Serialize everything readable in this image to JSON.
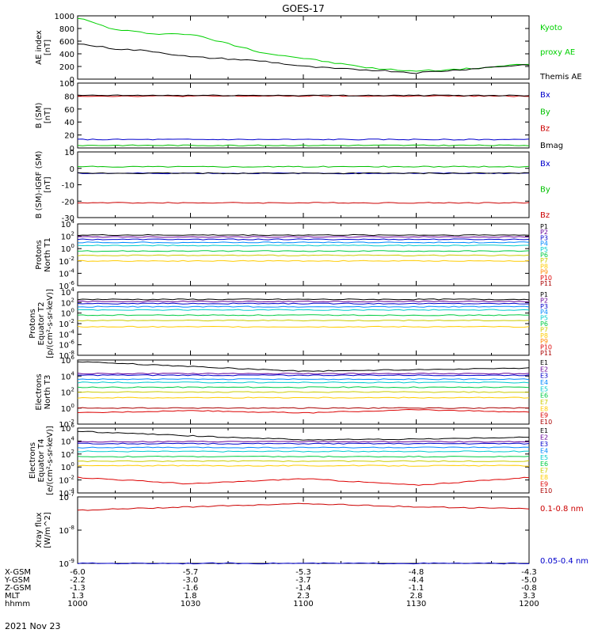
{
  "figure_title": "GOES-17",
  "date_label": "2021 Nov 23",
  "ephemeris": {
    "rows": [
      {
        "label": "X-GSM",
        "values": [
          "-6.0",
          "-5.7",
          "-5.3",
          "-4.8",
          "-4.3"
        ]
      },
      {
        "label": "Y-GSM",
        "values": [
          "-2.2",
          "-3.0",
          "-3.7",
          "-4.4",
          "-5.0"
        ]
      },
      {
        "label": "Z-GSM",
        "values": [
          "-1.3",
          "-1.6",
          "-1.4",
          "-1.1",
          "-0.8"
        ]
      },
      {
        "label": "MLT",
        "values": [
          "1.3",
          "1.8",
          "2.3",
          "2.8",
          "3.3"
        ]
      },
      {
        "label": "hhmm",
        "values": [
          "1000",
          "1030",
          "1100",
          "1130",
          "1200"
        ]
      }
    ]
  },
  "chart_data": [
    {
      "type": "line",
      "panel": "ae",
      "ylabel": [
        "AE index",
        "[nT]"
      ],
      "ylim": [
        0,
        1000
      ],
      "yscale": "linear",
      "yticks": [
        0,
        200,
        400,
        600,
        800,
        1000
      ],
      "x_time": [
        "1000",
        "1010",
        "1020",
        "1030",
        "1040",
        "1050",
        "1100",
        "1110",
        "1120",
        "1130",
        "1140",
        "1150",
        "1200"
      ],
      "series": [
        {
          "name": "Kyoto proxy AE",
          "color": "#00d000",
          "values": [
            970,
            780,
            720,
            710,
            560,
            410,
            330,
            240,
            160,
            130,
            150,
            190,
            240
          ]
        },
        {
          "name": "Themis AE",
          "color": "#000000",
          "values": [
            560,
            480,
            440,
            350,
            320,
            280,
            200,
            160,
            140,
            100,
            140,
            190,
            230
          ]
        }
      ],
      "legend": [
        {
          "text": "Kyoto",
          "color": "#00d000"
        },
        {
          "text": "proxy AE",
          "color": "#00d000"
        },
        {
          "text": "Themis AE",
          "color": "#000000"
        }
      ]
    },
    {
      "type": "line",
      "panel": "b_sm",
      "ylabel": [
        "B (SM)",
        "[nT]"
      ],
      "ylim": [
        0,
        100
      ],
      "yscale": "linear",
      "yticks": [
        0,
        20,
        40,
        60,
        80,
        100
      ],
      "series": [
        {
          "name": "Bx",
          "color": "#0000cc",
          "level": 13
        },
        {
          "name": "By",
          "color": "#00c000",
          "level": 4
        },
        {
          "name": "Bz",
          "color": "#cc0000",
          "level": 80
        },
        {
          "name": "Bmag",
          "color": "#000000",
          "level": 81
        }
      ],
      "legend": [
        {
          "text": "Bx",
          "color": "#0000cc"
        },
        {
          "text": "By",
          "color": "#00c000"
        },
        {
          "text": "Bz",
          "color": "#cc0000"
        },
        {
          "text": "Bmag",
          "color": "#000000"
        }
      ]
    },
    {
      "type": "line",
      "panel": "b_igrf",
      "ylabel": [
        "B (SM)-IGRF (SM)",
        "[nT]"
      ],
      "ylim": [
        -30,
        10
      ],
      "yscale": "linear",
      "yticks": [
        -30,
        -20,
        -10,
        0,
        10
      ],
      "series": [
        {
          "name": "Bx",
          "color": "#0000cc",
          "level": -3
        },
        {
          "name": "By",
          "color": "#00c000",
          "level": 1
        },
        {
          "name": "Bz",
          "color": "#cc0000",
          "level": -21
        },
        {
          "name": "",
          "color": "#000000",
          "level": -3
        }
      ],
      "legend": [
        {
          "text": "Bx",
          "color": "#0000cc"
        },
        {
          "text": "By",
          "color": "#00c000"
        },
        {
          "text": "Bz",
          "color": "#cc0000"
        }
      ]
    },
    {
      "type": "line",
      "panel": "protons_t1",
      "ylabel": [
        "Protons",
        "North T1"
      ],
      "ylim": [
        -6,
        4
      ],
      "yscale": "log",
      "yticks": [
        -6,
        -4,
        -2,
        0,
        2,
        4
      ],
      "series": [
        {
          "name": "P1",
          "color": "#000000",
          "level": 2.2
        },
        {
          "name": "P2",
          "color": "#660099",
          "level": 1.9
        },
        {
          "name": "P3",
          "color": "#0000cc",
          "level": 1.5
        },
        {
          "name": "P4",
          "color": "#0088ff",
          "level": 1.0
        },
        {
          "name": "P5",
          "color": "#00cccc",
          "level": 0.5
        },
        {
          "name": "P6",
          "color": "#00cc44",
          "level": -0.4
        },
        {
          "name": "P7",
          "color": "#cccc00",
          "level": -1.1
        },
        {
          "name": "P8",
          "color": "#ffcc00",
          "level": -2.0
        }
      ],
      "legend": [
        {
          "text": "P1",
          "color": "#000000"
        },
        {
          "text": "P2",
          "color": "#660099"
        },
        {
          "text": "P3",
          "color": "#0000cc"
        },
        {
          "text": "P4",
          "color": "#0088ff"
        },
        {
          "text": "P5",
          "color": "#00cccc"
        },
        {
          "text": "P6",
          "color": "#00cc44"
        },
        {
          "text": "P7",
          "color": "#cccc00"
        },
        {
          "text": "P8",
          "color": "#ffcc00"
        },
        {
          "text": "P9",
          "color": "#ff8800"
        },
        {
          "text": "P10",
          "color": "#dd0000"
        },
        {
          "text": "P11",
          "color": "#aa0000"
        }
      ]
    },
    {
      "type": "line",
      "panel": "protons_t2",
      "ylabel": [
        "Protons",
        "Equator T2",
        "[p/(cm²-s-sr-keV)]"
      ],
      "ylim": [
        -8,
        4
      ],
      "yscale": "log",
      "yticks": [
        -8,
        -6,
        -4,
        -2,
        0,
        2,
        4
      ],
      "series": [
        {
          "name": "P1",
          "color": "#000000",
          "level": 2.6
        },
        {
          "name": "P2",
          "color": "#660099",
          "level": 2.2
        },
        {
          "name": "P3",
          "color": "#0000cc",
          "level": 1.8
        },
        {
          "name": "P4",
          "color": "#0088ff",
          "level": 1.2
        },
        {
          "name": "P5",
          "color": "#00cccc",
          "level": 0.6
        },
        {
          "name": "P6",
          "color": "#00cc44",
          "level": -0.4
        },
        {
          "name": "P7",
          "color": "#cccc00",
          "level": -1.4
        },
        {
          "name": "P8",
          "color": "#ffcc00",
          "level": -2.6
        }
      ],
      "legend": [
        {
          "text": "P1",
          "color": "#000000"
        },
        {
          "text": "P2",
          "color": "#660099"
        },
        {
          "text": "P3",
          "color": "#0000cc"
        },
        {
          "text": "P4",
          "color": "#0088ff"
        },
        {
          "text": "P5",
          "color": "#00cccc"
        },
        {
          "text": "P6",
          "color": "#00cc44"
        },
        {
          "text": "P7",
          "color": "#cccc00"
        },
        {
          "text": "P8",
          "color": "#ffcc00"
        },
        {
          "text": "P9",
          "color": "#ff8800"
        },
        {
          "text": "P10",
          "color": "#dd0000"
        },
        {
          "text": "P11",
          "color": "#aa0000"
        }
      ]
    },
    {
      "type": "line",
      "panel": "electrons_t3",
      "ylabel": [
        "Electrons",
        "North T3"
      ],
      "ylim": [
        -2,
        6
      ],
      "yscale": "log",
      "yticks": [
        -2,
        0,
        2,
        4,
        6
      ],
      "series": [
        {
          "name": "E1",
          "color": "#000000",
          "levels": [
            5.8,
            5.2,
            4.6,
            4.8,
            5.0
          ]
        },
        {
          "name": "E2",
          "color": "#660099",
          "level": 4.3
        },
        {
          "name": "E3",
          "color": "#0000cc",
          "level": 4.1
        },
        {
          "name": "E4",
          "color": "#0088ff",
          "level": 3.6
        },
        {
          "name": "E5",
          "color": "#00cccc",
          "level": 3.2
        },
        {
          "name": "E6",
          "color": "#00cc44",
          "level": 2.6
        },
        {
          "name": "E7",
          "color": "#cccc00",
          "level": 2.0
        },
        {
          "name": "E8",
          "color": "#ffcc00",
          "level": 1.3
        },
        {
          "name": "E9",
          "color": "#dd0000",
          "levels": [
            -0.6,
            -0.3,
            -0.6,
            -0.2,
            -0.5
          ]
        },
        {
          "name": "E10",
          "color": "#aa0000",
          "level": 0.0
        }
      ],
      "legend": [
        {
          "text": "E1",
          "color": "#000000"
        },
        {
          "text": "E2",
          "color": "#660099"
        },
        {
          "text": "E3",
          "color": "#0000cc"
        },
        {
          "text": "E4",
          "color": "#0088ff"
        },
        {
          "text": "E5",
          "color": "#00cccc"
        },
        {
          "text": "E6",
          "color": "#00cc44"
        },
        {
          "text": "E7",
          "color": "#cccc00"
        },
        {
          "text": "E8",
          "color": "#ffcc00"
        },
        {
          "text": "E9",
          "color": "#dd0000"
        },
        {
          "text": "E10",
          "color": "#aa0000"
        }
      ]
    },
    {
      "type": "line",
      "panel": "electrons_t4",
      "ylabel": [
        "Electrons",
        "Equator T4",
        "[e/(cm²-s-sr-keV)]"
      ],
      "ylim": [
        -4,
        6
      ],
      "yscale": "log",
      "yticks": [
        -4,
        -2,
        0,
        2,
        4,
        6
      ],
      "series": [
        {
          "name": "E1",
          "color": "#000000",
          "levels": [
            5.5,
            4.8,
            4.2,
            4.3,
            4.6
          ]
        },
        {
          "name": "E2",
          "color": "#660099",
          "level": 3.9
        },
        {
          "name": "E3",
          "color": "#0000cc",
          "level": 3.6
        },
        {
          "name": "E4",
          "color": "#0088ff",
          "level": 3.0
        },
        {
          "name": "E5",
          "color": "#00cccc",
          "level": 2.4
        },
        {
          "name": "E6",
          "color": "#00cc44",
          "level": 1.6
        },
        {
          "name": "E7",
          "color": "#cccc00",
          "level": 0.9
        },
        {
          "name": "E8",
          "color": "#ffcc00",
          "level": 0.2
        },
        {
          "name": "E9",
          "color": "#dd0000",
          "levels": [
            -1.6,
            -2.6,
            -1.8,
            -2.8,
            -1.6
          ]
        }
      ],
      "legend": [
        {
          "text": "E1",
          "color": "#000000"
        },
        {
          "text": "E2",
          "color": "#660099"
        },
        {
          "text": "E3",
          "color": "#0000cc"
        },
        {
          "text": "E4",
          "color": "#0088ff"
        },
        {
          "text": "E5",
          "color": "#00cccc"
        },
        {
          "text": "E6",
          "color": "#00cc44"
        },
        {
          "text": "E7",
          "color": "#cccc00"
        },
        {
          "text": "E8",
          "color": "#ffcc00"
        },
        {
          "text": "E9",
          "color": "#dd0000"
        },
        {
          "text": "E10",
          "color": "#aa0000"
        }
      ]
    },
    {
      "type": "line",
      "panel": "xray",
      "ylabel": [
        "Xray flux",
        "[W/m^2]"
      ],
      "ylim": [
        -9,
        -7
      ],
      "yscale": "log",
      "yticks": [
        -9,
        -8,
        -7
      ],
      "series": [
        {
          "name": "0.1-0.8 nm",
          "color": "#cc0000",
          "levels": [
            -7.4,
            -7.3,
            -7.2,
            -7.3,
            -7.35
          ]
        },
        {
          "name": "0.05-0.4 nm",
          "color": "#0000cc",
          "level": -9.0
        }
      ],
      "legend": [
        {
          "text": "0.1-0.8 nm",
          "color": "#cc0000"
        },
        {
          "text": "0.05-0.4 nm",
          "color": "#0000cc"
        }
      ]
    }
  ]
}
